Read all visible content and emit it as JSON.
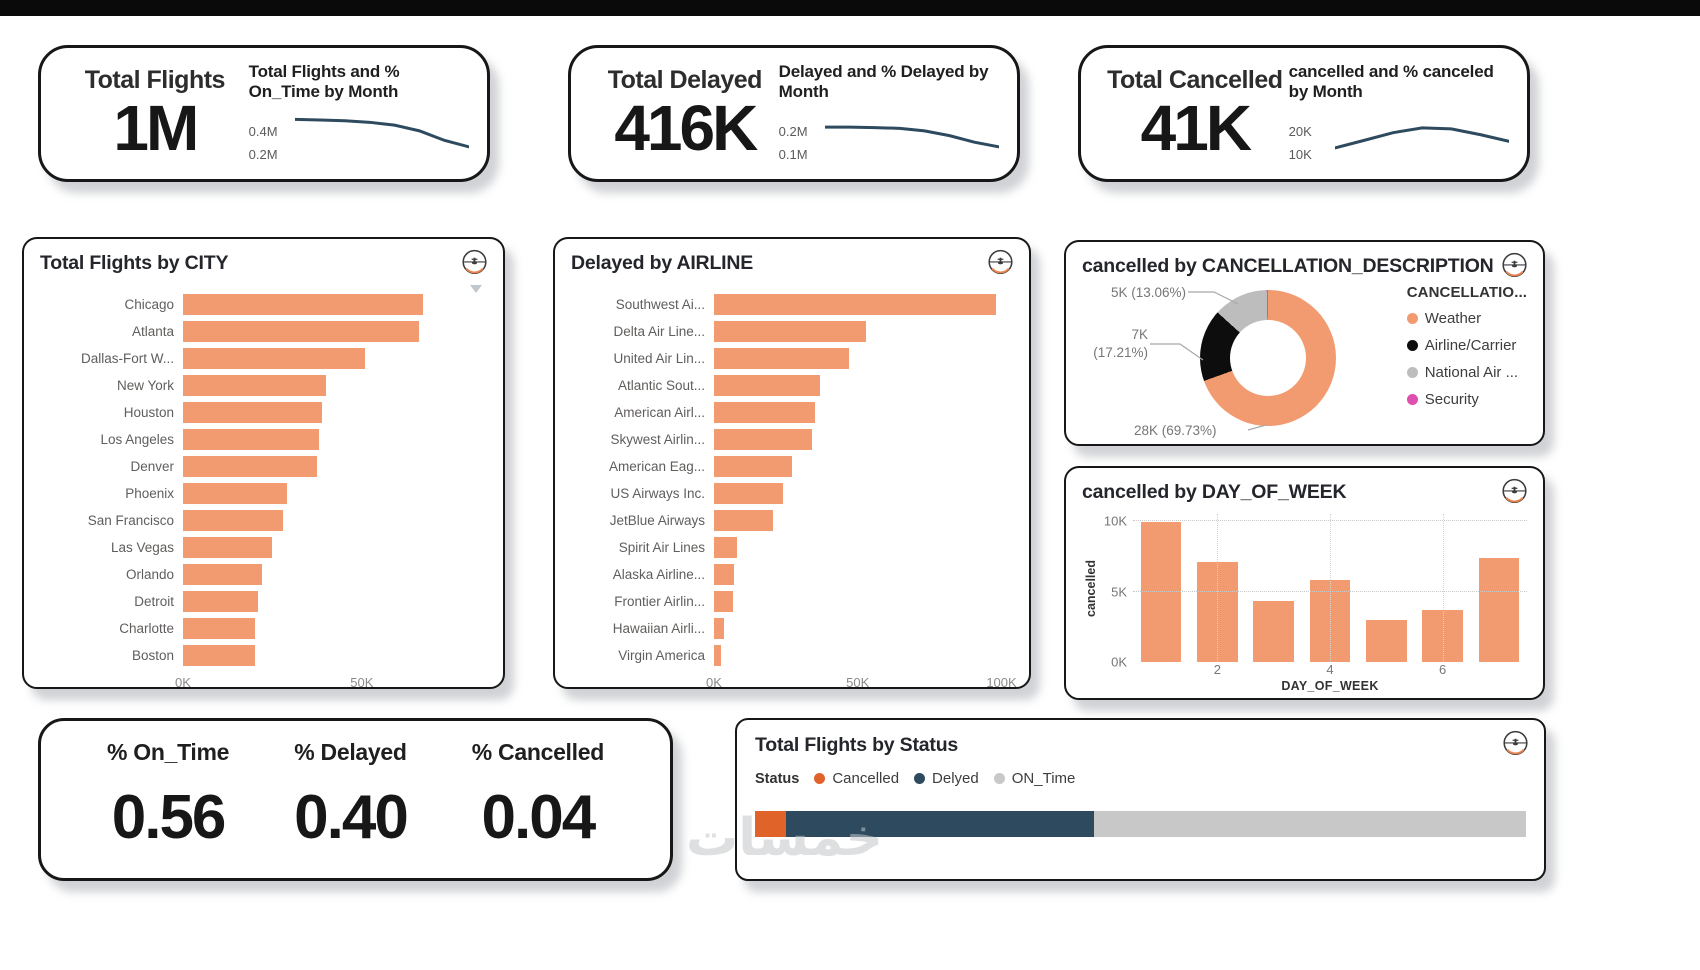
{
  "colors": {
    "salmon": "#F29A70",
    "orange": "#E0632A",
    "navy": "#2D4A5E",
    "gray": "#C8C8C8",
    "black": "#0D0D0D",
    "donut_gray": "#BDBDBD",
    "magenta": "#DE4FAE",
    "spark": "#2D4A5E"
  },
  "kpi": [
    {
      "label": "Total Flights",
      "value": "1M",
      "chart_title": "Total Flights and % On_Time by Month",
      "y_ticks": [
        "0.4M",
        "0.2M"
      ],
      "y_range": [
        0,
        0.5
      ],
      "trend": [
        0.46,
        0.455,
        0.445,
        0.43,
        0.4,
        0.34,
        0.24,
        0.17
      ]
    },
    {
      "label": "Total Delayed",
      "value": "416K",
      "chart_title": "Delayed and % Delayed by Month",
      "y_ticks": [
        "0.2M",
        "0.1M"
      ],
      "y_range": [
        0,
        0.25
      ],
      "trend": [
        0.19,
        0.19,
        0.187,
        0.183,
        0.17,
        0.145,
        0.11,
        0.085
      ]
    },
    {
      "label": "Total Cancelled",
      "value": "41K",
      "chart_title": "cancelled and % canceled by Month",
      "y_ticks": [
        "20K",
        "10K"
      ],
      "y_range": [
        0,
        25
      ],
      "trend": [
        8,
        12,
        16,
        18.5,
        18,
        15,
        11.5
      ]
    }
  ],
  "chart_data": [
    {
      "id": "city",
      "type": "bar",
      "orientation": "horizontal",
      "title": "Total Flights by CITY",
      "unit": "K",
      "xmax": 85,
      "categories": [
        "Chicago",
        "Atlanta",
        "Dallas-Fort W...",
        "New York",
        "Houston",
        "Los Angeles",
        "Denver",
        "Phoenix",
        "San Francisco",
        "Las Vegas",
        "Orlando",
        "Detroit",
        "Charlotte",
        "Boston"
      ],
      "values": [
        67,
        66,
        51,
        40,
        39,
        38,
        37.5,
        29,
        28,
        25,
        22,
        21,
        20,
        20
      ],
      "x_ticks": [
        {
          "label": "0K",
          "value": 0
        },
        {
          "label": "50K",
          "value": 50
        }
      ]
    },
    {
      "id": "airline",
      "type": "bar",
      "orientation": "horizontal",
      "title": "Delayed by AIRLINE",
      "unit": "K",
      "xmax": 104,
      "categories": [
        "Southwest Ai...",
        "Delta Air Line...",
        "United Air Lin...",
        "Atlantic Sout...",
        "American Airl...",
        "Skywest Airlin...",
        "American Eag...",
        "US Airways Inc.",
        "JetBlue Airways",
        "Spirit Air Lines",
        "Alaska Airline...",
        "Frontier Airlin...",
        "Hawaiian Airli...",
        "Virgin America"
      ],
      "values": [
        98,
        53,
        47,
        37,
        35,
        34,
        27,
        24,
        20.5,
        8,
        7,
        6.5,
        3.5,
        2.5
      ],
      "x_ticks": [
        {
          "label": "0K",
          "value": 0
        },
        {
          "label": "50K",
          "value": 50
        },
        {
          "label": "100K",
          "value": 100
        }
      ]
    },
    {
      "id": "cancellation",
      "type": "pie",
      "title": "cancelled by CANCELLATION_DESCRIPTION",
      "legend_title": "CANCELLATIO...",
      "slices": [
        {
          "label": "Weather",
          "pct": 69.73,
          "value": "28K",
          "value_label": "28K (69.73%)",
          "color": "salmon"
        },
        {
          "label": "Airline/Carrier",
          "pct": 17.21,
          "value": "7K",
          "value_label": "7K (17.21%)",
          "label_lines": [
            "7K",
            "(17.21%)"
          ],
          "color": "black"
        },
        {
          "label": "National Air ...",
          "pct": 13.06,
          "value": "5K",
          "value_label": "5K (13.06%)",
          "color": "donut_gray"
        },
        {
          "label": "Security",
          "pct": 0.3,
          "value": "",
          "value_label": "",
          "color": "magenta"
        }
      ]
    },
    {
      "id": "day_of_week",
      "type": "bar",
      "title": "cancelled by DAY_OF_WEEK",
      "xlabel": "DAY_OF_WEEK",
      "ylabel": "cancelled",
      "ymax": 10.5,
      "unit": "K",
      "categories": [
        1,
        2,
        3,
        4,
        5,
        6,
        7
      ],
      "values": [
        9.9,
        7.1,
        4.3,
        5.8,
        3.0,
        3.7,
        7.4
      ],
      "y_ticks": [
        {
          "label": "0K",
          "value": 0
        },
        {
          "label": "5K",
          "value": 5
        },
        {
          "label": "10K",
          "value": 10
        }
      ],
      "x_ticks": [
        {
          "label": "2",
          "index": 1
        },
        {
          "label": "4",
          "index": 3
        },
        {
          "label": "6",
          "index": 5
        }
      ]
    },
    {
      "id": "status",
      "type": "bar",
      "orientation": "horizontal-stacked",
      "title": "Total Flights by Status",
      "legend_label": "Status",
      "segments": [
        {
          "label": "Cancelled",
          "value": 0.04,
          "color": "orange"
        },
        {
          "label": "Delyed",
          "value": 0.4,
          "color": "navy"
        },
        {
          "label": "ON_Time",
          "value": 0.56,
          "color": "gray"
        }
      ]
    }
  ],
  "pct": [
    {
      "label": "% On_Time",
      "value": "0.56"
    },
    {
      "label": "% Delayed",
      "value": "0.40"
    },
    {
      "label": "% Cancelled",
      "value": "0.04"
    }
  ],
  "watermark": "خمسات"
}
